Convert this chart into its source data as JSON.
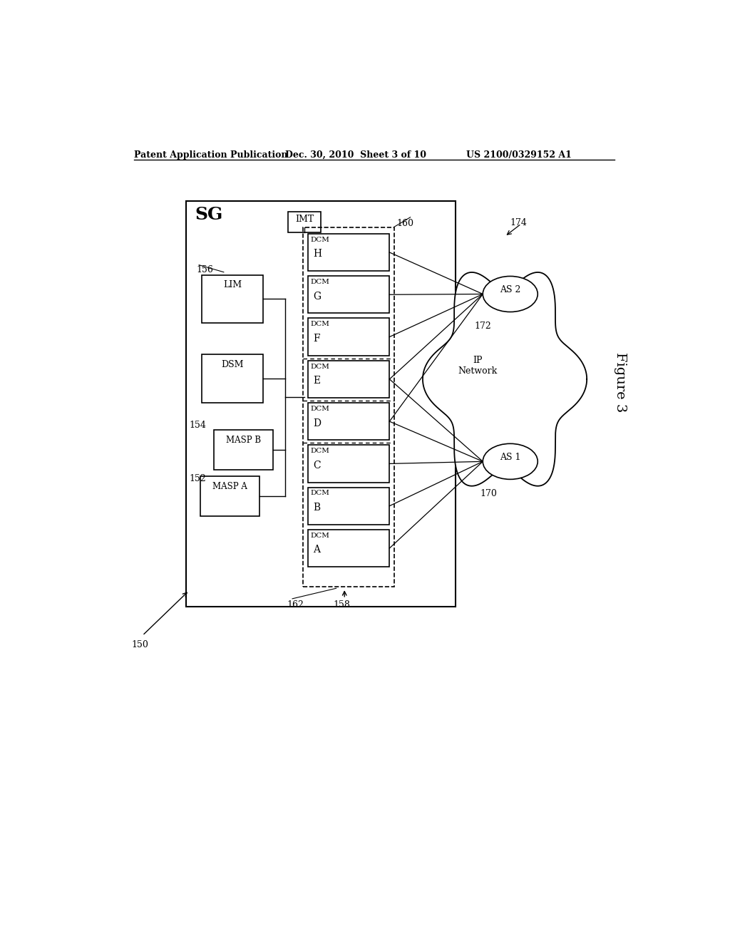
{
  "title_left": "Patent Application Publication",
  "title_mid": "Dec. 30, 2010  Sheet 3 of 10",
  "title_right": "US 2100/0329152 A1",
  "bg_color": "#ffffff",
  "fig_label": "Figure 3",
  "sg_label": "SG",
  "imt_label": "IMT",
  "ref_150": "150",
  "ref_152": "152",
  "ref_154": "154",
  "ref_156": "156",
  "ref_158": "158",
  "ref_160": "160",
  "ref_162": "162",
  "ref_170": "170",
  "ref_172": "172",
  "ref_174": "174",
  "as1_label": "AS 1",
  "as2_label": "AS 2",
  "ip_network_label": "IP\nNetwork",
  "dcm_labels": [
    "A",
    "B",
    "C",
    "D",
    "E",
    "F",
    "G",
    "H"
  ],
  "masp_a_label": "MASP A",
  "masp_b_label": "MASP B",
  "dsm_label": "DSM",
  "lim_label": "LIM",
  "lc": "#000000",
  "lw": 1.0
}
